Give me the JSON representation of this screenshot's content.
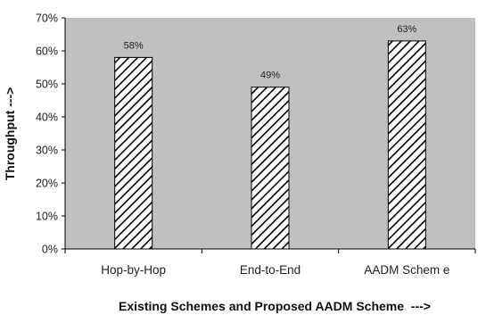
{
  "chart_data": {
    "type": "bar",
    "categories": [
      "Hop-by-Hop",
      "End-to-End",
      "AADM Schem e"
    ],
    "values": [
      58,
      49,
      63
    ],
    "data_labels": [
      "58%",
      "49%",
      "63%"
    ],
    "yticks": [
      "0%",
      "10%",
      "20%",
      "30%",
      "40%",
      "50%",
      "60%",
      "70%"
    ],
    "ylim": [
      0,
      70
    ],
    "ylabel": "Throughput --->",
    "xlabel": "Existing Schemes and Proposed AADM Scheme  --->",
    "grid": false,
    "legend": "none",
    "colors": {
      "plot_background": "#c0c0c0",
      "bar_fill": "#ffffff",
      "bar_hatch": "#000000",
      "axis": "#000000"
    }
  }
}
